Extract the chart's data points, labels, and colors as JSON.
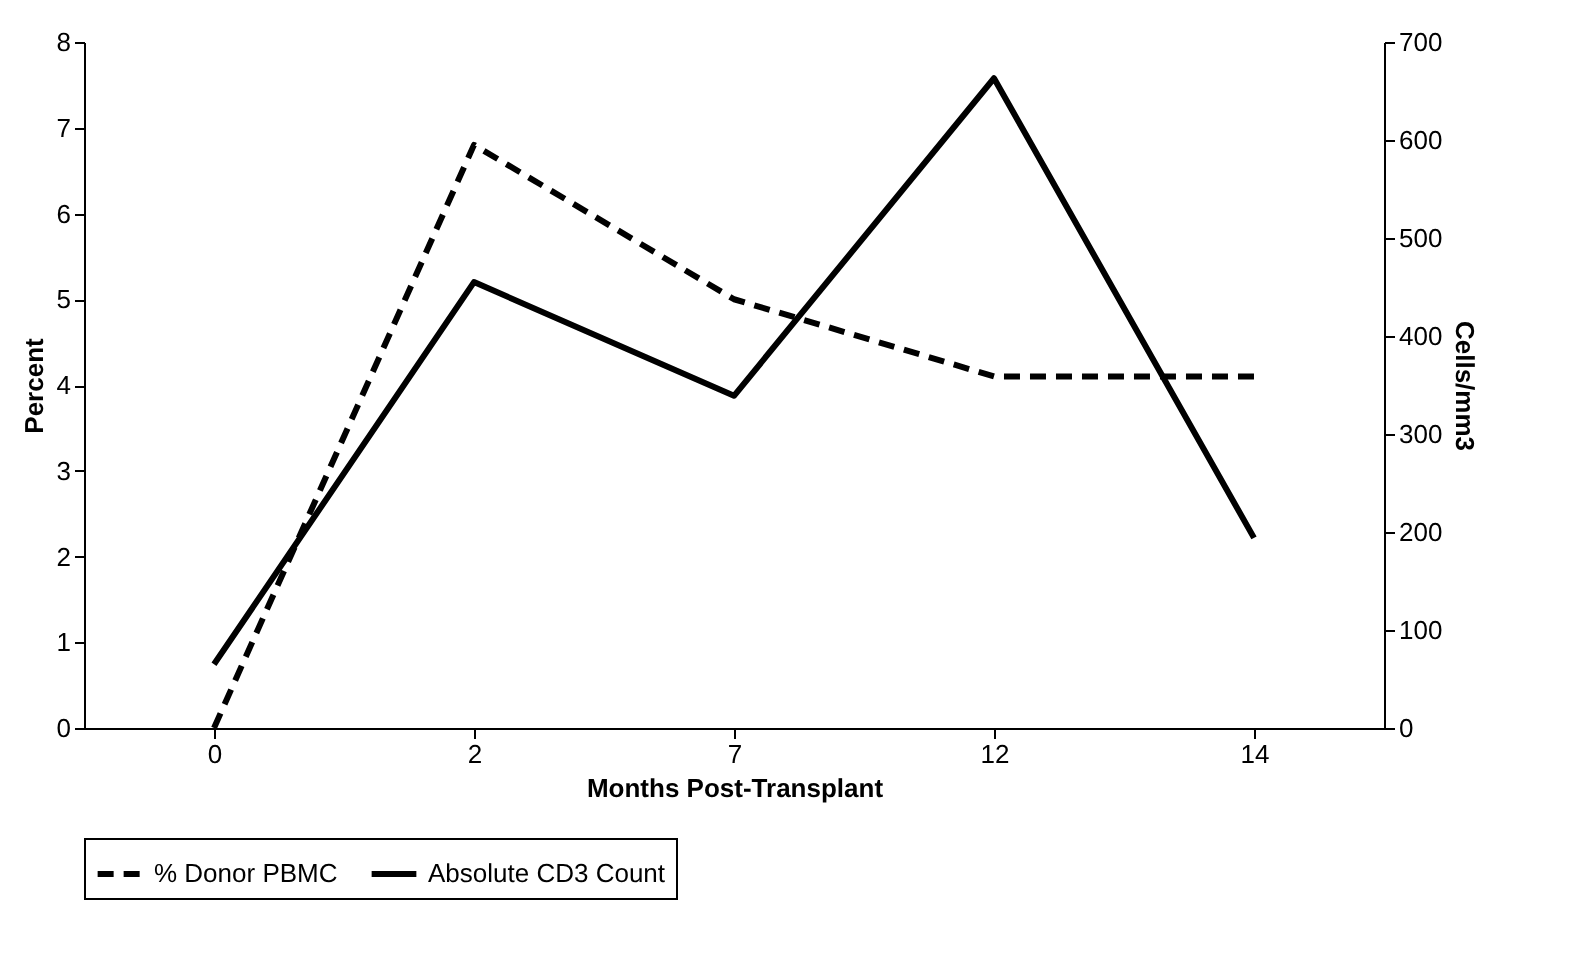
{
  "chart_data": {
    "type": "line",
    "xlabel": "Months Post-Transplant",
    "ylabel": "Percent",
    "y2label": "Cells/mm3",
    "categories": [
      "0",
      "2",
      "7",
      "12",
      "14"
    ],
    "series": [
      {
        "name": "% Donor PBMC",
        "color": "#000000",
        "line_style": "dashed",
        "values": [
          0,
          6.8,
          5.0,
          4.1,
          4.1
        ]
      },
      {
        "name": "Absolute CD3 Count",
        "color": "#000000",
        "line_style": "solid",
        "axis": "y2",
        "values": [
          65,
          455,
          339,
          663,
          194
        ]
      }
    ],
    "ylim": [
      0,
      8
    ],
    "yticks": [
      0,
      1,
      2,
      3,
      4,
      5,
      6,
      7,
      8
    ],
    "y2lim": [
      0,
      700
    ],
    "y2ticks": [
      0,
      100,
      200,
      300,
      400,
      500,
      600,
      700
    ],
    "grid": false,
    "legend": "bottom",
    "marker": "none"
  }
}
